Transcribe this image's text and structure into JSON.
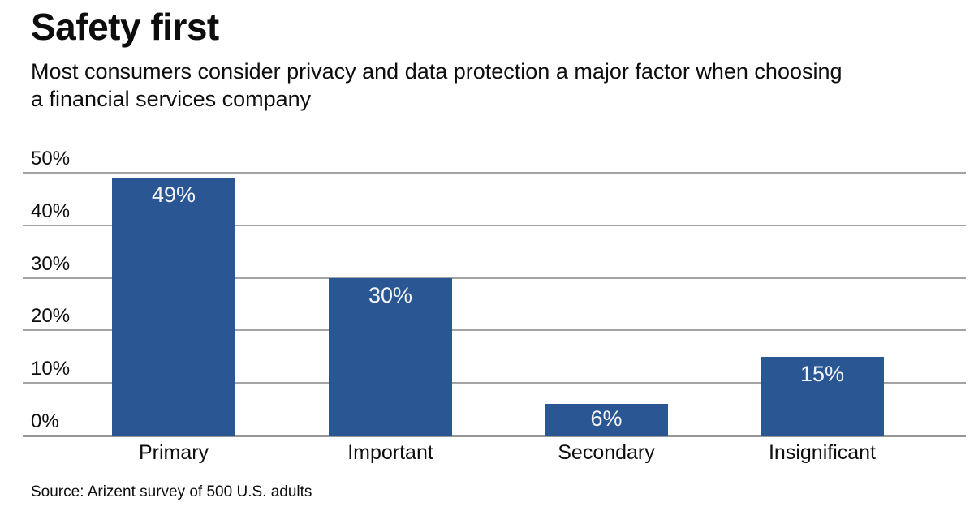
{
  "header": {
    "title": "Safety first",
    "subtitle_lines": [
      "Most consumers consider privacy and data protection a major factor when choosing",
      "a financial services company"
    ]
  },
  "chart_data": {
    "type": "bar",
    "title": "Safety first",
    "subtitle": "Most consumers consider privacy and data protection a major factor when choosing a financial services company",
    "categories": [
      "Primary",
      "Important",
      "Secondary",
      "Insignificant"
    ],
    "values": [
      49,
      30,
      6,
      15
    ],
    "value_labels": [
      "49%",
      "30%",
      "6%",
      "15%"
    ],
    "y_ticks": [
      {
        "value": 0,
        "label": "0%"
      },
      {
        "value": 10,
        "label": "10%"
      },
      {
        "value": 20,
        "label": "20%"
      },
      {
        "value": 30,
        "label": "30%"
      },
      {
        "value": 40,
        "label": "40%"
      },
      {
        "value": 50,
        "label": "50%"
      }
    ],
    "ylim": [
      0,
      50
    ],
    "xlabel": "",
    "ylabel": "",
    "grid": true,
    "legend_position": "none",
    "colors": {
      "bar": "#2a5693",
      "value_label": "#f4f4f4",
      "gridline": "#a3a3a3",
      "axis_line": "#979797",
      "text": "#0d0d0d"
    }
  },
  "footer": {
    "source": "Source: Arizent survey of 500 U.S. adults"
  }
}
